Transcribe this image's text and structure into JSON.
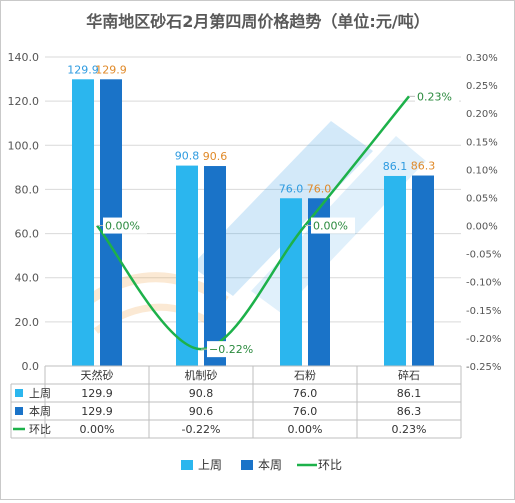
{
  "chart_data": {
    "type": "bar+line",
    "title": "华南地区砂石2月第四周价格趋势（单位:元/吨）",
    "categories": [
      "天然砂",
      "机制砂",
      "石粉",
      "碎石"
    ],
    "series": [
      {
        "name": "上周",
        "kind": "bar",
        "axis": "left",
        "values": [
          129.9,
          90.8,
          76.0,
          86.1
        ],
        "labels": [
          "129.9",
          "90.8",
          "76.0",
          "86.1"
        ],
        "color": "#2bb6ee",
        "label_color": "#2e9be0"
      },
      {
        "name": "本周",
        "kind": "bar",
        "axis": "left",
        "values": [
          129.9,
          90.6,
          76.0,
          86.3
        ],
        "labels": [
          "129.9",
          "90.6",
          "76.0",
          "86.3"
        ],
        "color": "#1a73c8",
        "label_color": "#e08a2a"
      },
      {
        "name": "环比",
        "kind": "line",
        "axis": "right",
        "smooth": true,
        "values": [
          0.0,
          -0.22,
          0.0,
          0.23
        ],
        "labels": [
          "0.00%",
          "−0.22%",
          "0.00%",
          "0.23%"
        ],
        "color": "#1db14a"
      }
    ],
    "y_left": {
      "min": 0,
      "max": 140,
      "step": 20,
      "tick_labels": [
        "0.0",
        "20.0",
        "40.0",
        "60.0",
        "80.0",
        "100.0",
        "120.0",
        "140.0"
      ]
    },
    "y_right": {
      "min": -0.25,
      "max": 0.3,
      "step": 0.05,
      "tick_labels": [
        "-0.25%",
        "-0.20%",
        "-0.15%",
        "-0.10%",
        "-0.05%",
        "0.00%",
        "0.05%",
        "0.10%",
        "0.15%",
        "0.20%",
        "0.25%",
        "0.30%"
      ]
    },
    "table": {
      "rows": [
        {
          "name": "上周",
          "cells": [
            "129.9",
            "90.8",
            "76.0",
            "86.1"
          ]
        },
        {
          "name": "本周",
          "cells": [
            "129.9",
            "90.6",
            "76.0",
            "86.3"
          ]
        },
        {
          "name": "环比",
          "cells": [
            "0.00%",
            "-0.22%",
            "0.00%",
            "0.23%"
          ]
        }
      ]
    },
    "legend": {
      "position": "bottom",
      "items": [
        "上周",
        "本周",
        "环比"
      ]
    },
    "gridlines": true,
    "colors": {
      "grid": "#d9d9d9",
      "axis_text": "#555555",
      "title": "#595959"
    }
  }
}
